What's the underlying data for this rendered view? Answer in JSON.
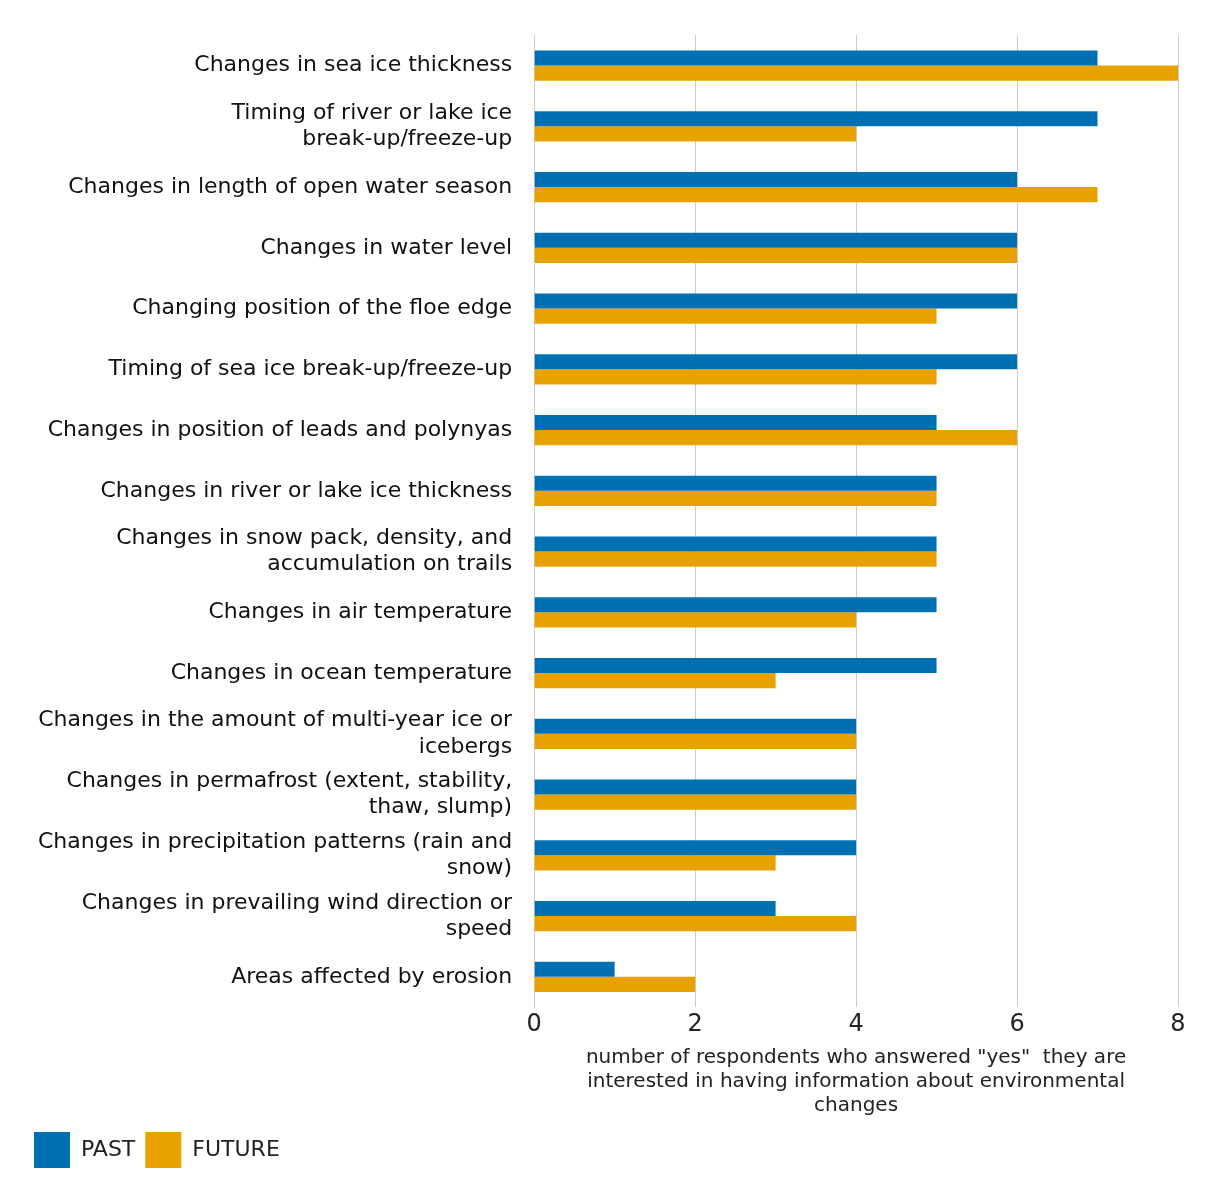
{
  "chart_data": {
    "type": "bar",
    "orientation": "horizontal",
    "categories": [
      "Changes in sea ice thickness",
      "Timing of river or lake ice break-up/freeze-up",
      "Changes in length of open water season",
      "Changes in water level",
      "Changing position of the floe edge",
      "Timing of sea ice break-up/freeze-up",
      "Changes in position of leads and polynyas",
      "Changes in river or lake ice thickness",
      "Changes in snow pack, density, and accumulation on trails",
      "Changes in air temperature",
      "Changes in ocean temperature",
      "Changes in the amount of multi-year ice or icebergs",
      "Changes in permafrost (extent, stability, thaw, slump)",
      "Changes in precipitation patterns (rain and snow)",
      "Changes in prevailing wind direction or speed",
      "Areas affected by erosion"
    ],
    "series": [
      {
        "name": "PAST",
        "color": "#0070b3",
        "values": [
          7,
          7,
          6,
          6,
          6,
          6,
          5,
          5,
          5,
          5,
          5,
          4,
          4,
          4,
          3,
          1
        ]
      },
      {
        "name": "FUTURE",
        "color": "#e8a200",
        "values": [
          8,
          4,
          7,
          6,
          5,
          5,
          6,
          5,
          5,
          4,
          3,
          4,
          4,
          3,
          4,
          2
        ]
      }
    ],
    "xlim": [
      0,
      8
    ],
    "xticks": [
      0,
      2,
      4,
      6,
      8
    ],
    "grid": "x",
    "legend": "bottom left",
    "xlabel": "number of respondents who answered \"yes\"  they are interested in having information about environmental changes"
  }
}
